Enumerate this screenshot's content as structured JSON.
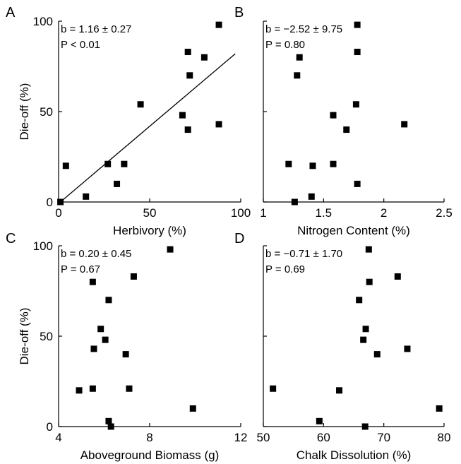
{
  "chart_data": [
    {
      "type": "scatter",
      "panel_label": "A",
      "xlabel": "Herbivory (%)",
      "ylabel": "Die-off (%)",
      "xlim": [
        0,
        100
      ],
      "ylim": [
        0,
        100
      ],
      "x_ticks": [
        "0",
        "50",
        "100"
      ],
      "y_ticks": [
        "0",
        "50",
        "100"
      ],
      "stat_lines": [
        "b = 1.16 ± 0.27",
        "P < 0.01"
      ],
      "regression_line": true,
      "points": [
        {
          "x": 1,
          "y": 0
        },
        {
          "x": 4,
          "y": 20
        },
        {
          "x": 15,
          "y": 3
        },
        {
          "x": 27,
          "y": 21
        },
        {
          "x": 32,
          "y": 10
        },
        {
          "x": 36,
          "y": 21
        },
        {
          "x": 45,
          "y": 54
        },
        {
          "x": 68,
          "y": 48
        },
        {
          "x": 71,
          "y": 83
        },
        {
          "x": 72,
          "y": 70
        },
        {
          "x": 71,
          "y": 40
        },
        {
          "x": 80,
          "y": 80
        },
        {
          "x": 88,
          "y": 98
        },
        {
          "x": 88,
          "y": 43
        }
      ]
    },
    {
      "type": "scatter",
      "panel_label": "B",
      "xlabel": "Nitrogen Content (%)",
      "ylabel": "",
      "xlim": [
        1,
        2.5
      ],
      "ylim": [
        0,
        100
      ],
      "x_ticks": [
        "1",
        "1.5",
        "2",
        "2.5"
      ],
      "y_ticks": [],
      "stat_lines": [
        "b = −2.52 ± 9.75",
        "P = 0.80"
      ],
      "regression_line": false,
      "points": [
        {
          "x": 1.78,
          "y": 98
        },
        {
          "x": 1.78,
          "y": 83
        },
        {
          "x": 1.3,
          "y": 80
        },
        {
          "x": 1.28,
          "y": 70
        },
        {
          "x": 1.77,
          "y": 54
        },
        {
          "x": 1.58,
          "y": 48
        },
        {
          "x": 1.69,
          "y": 40
        },
        {
          "x": 2.17,
          "y": 43
        },
        {
          "x": 1.21,
          "y": 21
        },
        {
          "x": 1.41,
          "y": 20
        },
        {
          "x": 1.58,
          "y": 21
        },
        {
          "x": 1.78,
          "y": 10
        },
        {
          "x": 1.4,
          "y": 3
        },
        {
          "x": 1.26,
          "y": 0
        }
      ]
    },
    {
      "type": "scatter",
      "panel_label": "C",
      "xlabel": "Aboveground Biomass (g)",
      "ylabel": "Die-off (%)",
      "xlim": [
        4,
        12
      ],
      "ylim": [
        0,
        100
      ],
      "x_ticks": [
        "4",
        "8",
        "12"
      ],
      "y_ticks": [
        "0",
        "50",
        "100"
      ],
      "stat_lines": [
        "b = 0.20 ± 0.45",
        "P = 0.67"
      ],
      "regression_line": false,
      "points": [
        {
          "x": 8.9,
          "y": 98
        },
        {
          "x": 7.3,
          "y": 83
        },
        {
          "x": 5.5,
          "y": 80
        },
        {
          "x": 6.2,
          "y": 70
        },
        {
          "x": 5.85,
          "y": 54
        },
        {
          "x": 6.05,
          "y": 48
        },
        {
          "x": 5.55,
          "y": 43
        },
        {
          "x": 6.95,
          "y": 40
        },
        {
          "x": 4.9,
          "y": 20
        },
        {
          "x": 5.5,
          "y": 21
        },
        {
          "x": 7.1,
          "y": 21
        },
        {
          "x": 9.9,
          "y": 10
        },
        {
          "x": 6.2,
          "y": 3
        },
        {
          "x": 6.3,
          "y": 0
        }
      ]
    },
    {
      "type": "scatter",
      "panel_label": "D",
      "xlabel": "Chalk Dissolution (%)",
      "ylabel": "",
      "xlim": [
        50,
        80
      ],
      "ylim": [
        0,
        100
      ],
      "x_ticks": [
        "50",
        "60",
        "70",
        "80"
      ],
      "y_ticks": [],
      "stat_lines": [
        "b = −0.71 ± 1.70",
        "P = 0.69"
      ],
      "regression_line": false,
      "points": [
        {
          "x": 67.5,
          "y": 98
        },
        {
          "x": 72.3,
          "y": 83
        },
        {
          "x": 67.6,
          "y": 80
        },
        {
          "x": 65.9,
          "y": 70
        },
        {
          "x": 67.0,
          "y": 54
        },
        {
          "x": 66.6,
          "y": 48
        },
        {
          "x": 68.9,
          "y": 40
        },
        {
          "x": 73.9,
          "y": 43
        },
        {
          "x": 51.6,
          "y": 21
        },
        {
          "x": 62.6,
          "y": 20
        },
        {
          "x": 79.2,
          "y": 10
        },
        {
          "x": 59.3,
          "y": 3
        },
        {
          "x": 66.9,
          "y": 0
        }
      ]
    }
  ]
}
